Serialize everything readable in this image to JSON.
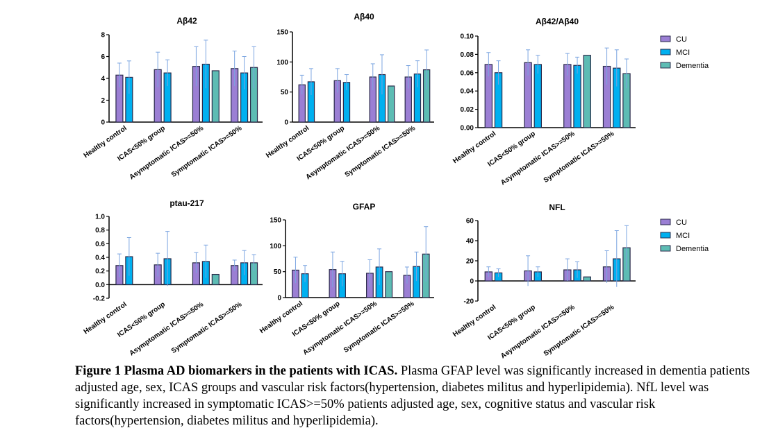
{
  "colors": {
    "CU": "#9b7fd4",
    "MCI": "#00b0f0",
    "Dementia": "#5dbcb4",
    "error": "#7aa4e0"
  },
  "legend": [
    "CU",
    "MCI",
    "Dementia"
  ],
  "chart_data": [
    {
      "type": "bar",
      "title": "Aβ42",
      "categories": [
        "Healthy control",
        "ICAS<50% group",
        "Asymptomatic ICAS>=50%",
        "Symptomatic ICAS>=50%"
      ],
      "ylim": [
        0,
        8
      ],
      "yticks": [
        "0",
        "2",
        "4",
        "6",
        "8"
      ],
      "series": [
        {
          "name": "CU",
          "values": [
            4.3,
            4.8,
            5.1,
            4.9
          ],
          "errors": [
            1.1,
            1.6,
            1.8,
            1.6
          ]
        },
        {
          "name": "MCI",
          "values": [
            4.1,
            4.5,
            5.3,
            4.5
          ],
          "errors": [
            1.5,
            1.2,
            2.2,
            1.5
          ]
        },
        {
          "name": "Dementia",
          "values": [
            null,
            null,
            4.7,
            5.0
          ],
          "errors": [
            null,
            null,
            null,
            1.9
          ]
        }
      ]
    },
    {
      "type": "bar",
      "title": "Aβ40",
      "categories": [
        "Healthy control",
        "ICAS<50% group",
        "Asymptomatic ICAS>=50%",
        "Symptomatic ICAS>=50%"
      ],
      "ylim": [
        0,
        150
      ],
      "yticks": [
        "0",
        "50",
        "100",
        "150"
      ],
      "series": [
        {
          "name": "CU",
          "values": [
            62,
            69,
            75,
            75
          ],
          "errors": [
            16,
            20,
            22,
            19
          ]
        },
        {
          "name": "MCI",
          "values": [
            67,
            66,
            79,
            80
          ],
          "errors": [
            22,
            13,
            33,
            22
          ]
        },
        {
          "name": "Dementia",
          "values": [
            null,
            null,
            60,
            87
          ],
          "errors": [
            null,
            null,
            null,
            33
          ]
        }
      ]
    },
    {
      "type": "bar",
      "title": "Aβ42/Aβ40",
      "categories": [
        "Healthy control",
        "ICAS<50% group",
        "Asymptomatic ICAS>=50%",
        "Symptomatic ICAS>=50%"
      ],
      "ylim": [
        0,
        0.1
      ],
      "yticks": [
        "0.00",
        "0.02",
        "0.04",
        "0.06",
        "0.08",
        "0.10"
      ],
      "series": [
        {
          "name": "CU",
          "values": [
            0.069,
            0.071,
            0.069,
            0.067
          ],
          "errors": [
            0.013,
            0.014,
            0.012,
            0.02
          ]
        },
        {
          "name": "MCI",
          "values": [
            0.06,
            0.069,
            0.068,
            0.065
          ],
          "errors": [
            0.013,
            0.01,
            0.009,
            0.02
          ]
        },
        {
          "name": "Dementia",
          "values": [
            null,
            null,
            0.079,
            0.059
          ],
          "errors": [
            null,
            null,
            null,
            0.016
          ]
        }
      ]
    },
    {
      "type": "bar",
      "title": "ptau-217",
      "categories": [
        "Healthy control",
        "ICAS<50% group",
        "Asymptomatic ICAS>=50%",
        "Symptomatic ICAS>=50%"
      ],
      "ylim": [
        -0.2,
        1.0
      ],
      "yticks": [
        "-0.2",
        "0.0",
        "0.2",
        "0.4",
        "0.6",
        "0.8",
        "1.0"
      ],
      "series": [
        {
          "name": "CU",
          "values": [
            0.28,
            0.29,
            0.32,
            0.28
          ],
          "errors": [
            0.17,
            0.17,
            0.15,
            0.08
          ]
        },
        {
          "name": "MCI",
          "values": [
            0.41,
            0.38,
            0.34,
            0.32
          ],
          "errors": [
            0.28,
            0.4,
            0.24,
            0.18
          ]
        },
        {
          "name": "Dementia",
          "values": [
            null,
            null,
            0.15,
            0.32
          ],
          "errors": [
            null,
            null,
            null,
            0.12
          ]
        }
      ]
    },
    {
      "type": "bar",
      "title": "GFAP",
      "categories": [
        "Healthy control",
        "ICAS<50% group",
        "Asymptomatic ICAS>=50%",
        "Symptomatic ICAS>=50%"
      ],
      "ylim": [
        0,
        150
      ],
      "yticks": [
        "0",
        "50",
        "100",
        "150"
      ],
      "series": [
        {
          "name": "CU",
          "values": [
            53,
            54,
            47,
            43
          ],
          "errors": [
            25,
            34,
            26,
            16
          ]
        },
        {
          "name": "MCI",
          "values": [
            46,
            46,
            59,
            60
          ],
          "errors": [
            16,
            24,
            35,
            28
          ]
        },
        {
          "name": "Dementia",
          "values": [
            null,
            null,
            50,
            84
          ],
          "errors": [
            null,
            null,
            null,
            53
          ]
        }
      ]
    },
    {
      "type": "bar",
      "title": "NFL",
      "categories": [
        "Healthy control",
        "ICAS<50% group",
        "Asymptomatic ICAS>=50%",
        "Symptomatic ICAS>=50%"
      ],
      "ylim": [
        -20,
        60
      ],
      "yticks": [
        "-20",
        "0",
        "20",
        "40",
        "60"
      ],
      "series": [
        {
          "name": "CU",
          "values": [
            9,
            10,
            11,
            14
          ],
          "errors": [
            5,
            15,
            11,
            16
          ]
        },
        {
          "name": "MCI",
          "values": [
            8,
            9,
            11,
            22
          ],
          "errors": [
            4,
            5,
            8,
            28
          ]
        },
        {
          "name": "Dementia",
          "values": [
            null,
            null,
            4,
            33
          ],
          "errors": [
            null,
            null,
            null,
            22
          ]
        }
      ]
    }
  ],
  "caption": {
    "bold": "Figure 1 Plasma AD biomarkers in the patients with ICAS.",
    "text": " Plasma GFAP level was significantly increased in dementia patients adjusted age, sex, ICAS groups and vascular risk factors(hypertension, diabetes militus and hyperlipidemia). NfL level was significantly increased in symptomatic ICAS>=50% patients adjusted age, sex, cognitive status and vascular risk factors(hypertension, diabetes militus and hyperlipidemia)."
  }
}
